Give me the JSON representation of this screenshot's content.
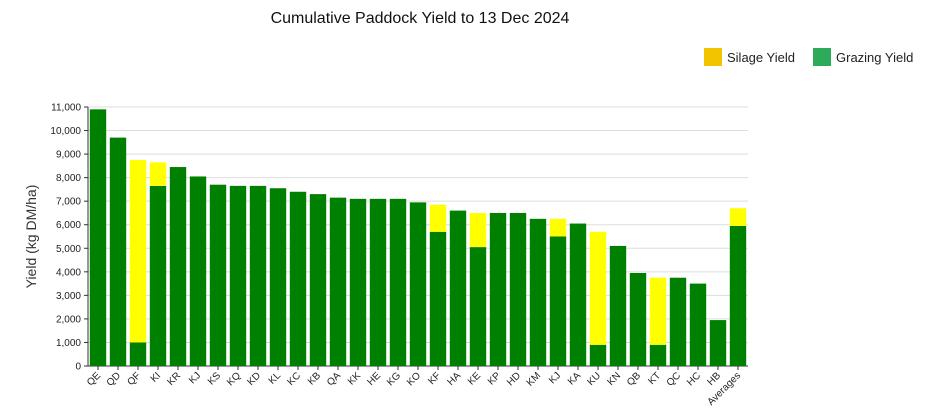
{
  "chart_data": {
    "type": "bar",
    "stacked": true,
    "title": "Cumulative Paddock Yield to 13 Dec 2024",
    "ylabel": "Yield (kg DM/ha)",
    "xlabel": "",
    "ylim": [
      0,
      11000
    ],
    "yticks": [
      0,
      1000,
      2000,
      3000,
      4000,
      5000,
      6000,
      7000,
      8000,
      9000,
      10000,
      11000
    ],
    "ytick_labels": [
      "0",
      "1,000",
      "2,000",
      "3,000",
      "4,000",
      "5,000",
      "6,000",
      "7,000",
      "8,000",
      "9,000",
      "10,000",
      "11,000"
    ],
    "grid": true,
    "legend_placement": "top-right",
    "categories": [
      "QE",
      "QD",
      "QF",
      "KI",
      "KR",
      "KJ",
      "KS",
      "KQ",
      "KD",
      "KL",
      "KC",
      "KB",
      "QA",
      "KK",
      "HE",
      "KG",
      "KO",
      "KF",
      "HA",
      "KE",
      "KP",
      "HD",
      "KM",
      "KJ",
      "KA",
      "KU",
      "KN",
      "QB",
      "KT",
      "QC",
      "HC",
      "HB",
      "Averages"
    ],
    "series": [
      {
        "name": "Grazing Yield",
        "color": "#008000",
        "values": [
          10900,
          9700,
          1000,
          7650,
          8450,
          8050,
          7700,
          7650,
          7650,
          7550,
          7400,
          7300,
          7150,
          7100,
          7100,
          7100,
          6950,
          5700,
          6600,
          5050,
          6500,
          6500,
          6250,
          5500,
          6050,
          900,
          5100,
          3950,
          900,
          3750,
          3500,
          1950,
          5950
        ]
      },
      {
        "name": "Silage Yield",
        "color": "#ffff00",
        "values": [
          0,
          0,
          7750,
          1000,
          0,
          0,
          0,
          0,
          0,
          0,
          0,
          0,
          0,
          0,
          0,
          0,
          0,
          1150,
          0,
          1450,
          0,
          0,
          0,
          750,
          0,
          4800,
          0,
          0,
          2850,
          0,
          0,
          0,
          750
        ]
      }
    ]
  },
  "legend": {
    "items": [
      {
        "label": "Silage Yield",
        "color": "#f2c400"
      },
      {
        "label": "Grazing Yield",
        "color": "#2eab5a"
      }
    ]
  }
}
